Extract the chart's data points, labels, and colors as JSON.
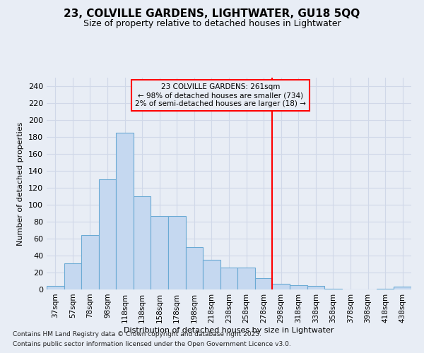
{
  "title_line1": "23, COLVILLE GARDENS, LIGHTWATER, GU18 5QQ",
  "title_line2": "Size of property relative to detached houses in Lightwater",
  "xlabel": "Distribution of detached houses by size in Lightwater",
  "ylabel": "Number of detached properties",
  "footnote_line1": "Contains HM Land Registry data © Crown copyright and database right 2025.",
  "footnote_line2": "Contains public sector information licensed under the Open Government Licence v3.0.",
  "annotation_line1": "23 COLVILLE GARDENS: 261sqm",
  "annotation_line2": "← 98% of detached houses are smaller (734)",
  "annotation_line3": "2% of semi-detached houses are larger (18) →",
  "bar_labels": [
    "37sqm",
    "57sqm",
    "78sqm",
    "98sqm",
    "118sqm",
    "138sqm",
    "158sqm",
    "178sqm",
    "198sqm",
    "218sqm",
    "238sqm",
    "258sqm",
    "278sqm",
    "298sqm",
    "318sqm",
    "338sqm",
    "358sqm",
    "378sqm",
    "398sqm",
    "418sqm",
    "438sqm"
  ],
  "bar_values": [
    4,
    31,
    64,
    130,
    185,
    110,
    87,
    87,
    50,
    35,
    26,
    26,
    13,
    7,
    5,
    4,
    1,
    0,
    0,
    1,
    3
  ],
  "bar_color": "#c5d8f0",
  "bar_edge_color": "#6aaad4",
  "vline_x_index": 12,
  "vline_color": "red",
  "bg_color": "#e8edf5",
  "grid_color": "#d0d8e8",
  "annotation_box_color": "red",
  "ylim": [
    0,
    250
  ],
  "yticks": [
    0,
    20,
    40,
    60,
    80,
    100,
    120,
    140,
    160,
    180,
    200,
    220,
    240
  ]
}
